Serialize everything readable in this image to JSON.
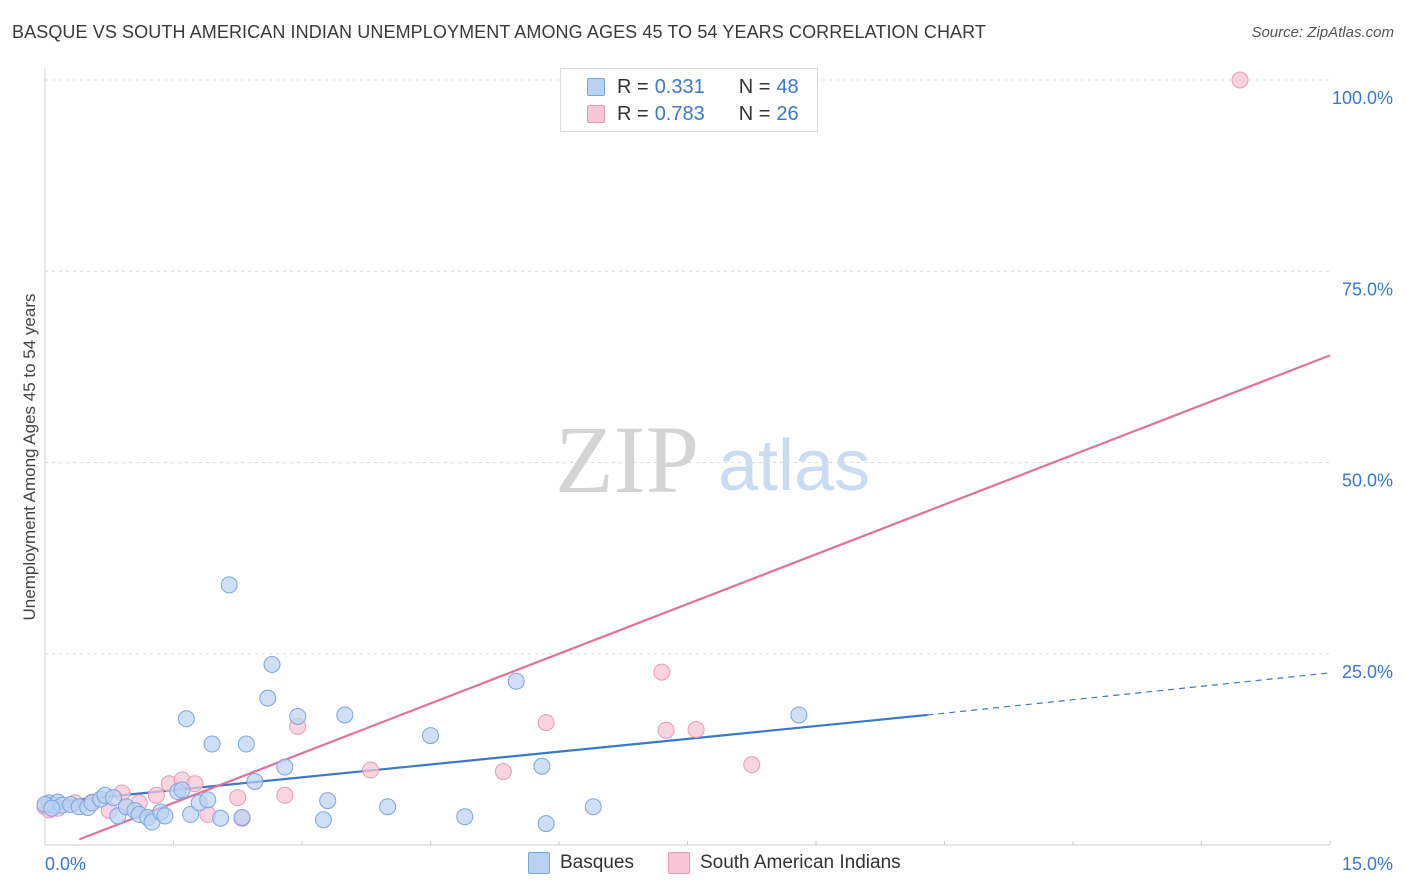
{
  "title": "BASQUE VS SOUTH AMERICAN INDIAN UNEMPLOYMENT AMONG AGES 45 TO 54 YEARS CORRELATION CHART",
  "source": "Source: ZipAtlas.com",
  "watermark": {
    "zip": "ZIP",
    "atlas": "atlas"
  },
  "legend": {
    "basques": {
      "r_label": "R = ",
      "r_value": "0.331",
      "n_label": "N = ",
      "n_value": "48"
    },
    "south_american": {
      "r_label": "R = ",
      "r_value": "0.783",
      "n_label": "N = ",
      "n_value": "26"
    }
  },
  "bottom_legend": {
    "basques": "Basques",
    "south_american": "South American Indians"
  },
  "colors": {
    "blue": "#3a78c9",
    "blue_fill": "#b9d2f2",
    "blue_stroke": "#7aa6de",
    "pink": "#e07299",
    "pink_fill": "#f8c6d6",
    "pink_stroke": "#eb9ab5",
    "grid": "#dcdcdc",
    "tick_label": "#3a78c9"
  },
  "chart_data": {
    "type": "scatter",
    "title": "BASQUE VS SOUTH AMERICAN INDIAN UNEMPLOYMENT AMONG AGES 45 TO 54 YEARS CORRELATION CHART",
    "xlabel": "",
    "ylabel": "Unemployment Among Ages 45 to 54 years",
    "xlim": [
      0,
      15
    ],
    "ylim": [
      0,
      100
    ],
    "x_tick_labels": [
      "0.0%",
      "15.0%"
    ],
    "y_ticks": [
      25,
      50,
      75,
      100
    ],
    "y_tick_labels": [
      "25.0%",
      "50.0%",
      "75.0%",
      "100.0%"
    ],
    "series": [
      {
        "name": "Basques",
        "points": [
          [
            0.05,
            5.5
          ],
          [
            0.1,
            5.2
          ],
          [
            0.15,
            5.6
          ],
          [
            0.2,
            5.2
          ],
          [
            0.3,
            5.3
          ],
          [
            0.4,
            5.0
          ],
          [
            0.5,
            4.9
          ],
          [
            0.55,
            5.5
          ],
          [
            0.65,
            6.0
          ],
          [
            0.7,
            6.5
          ],
          [
            0.8,
            6.2
          ],
          [
            0.85,
            3.8
          ],
          [
            0.95,
            5.0
          ],
          [
            1.05,
            4.5
          ],
          [
            1.1,
            4.0
          ],
          [
            1.2,
            3.6
          ],
          [
            1.25,
            3.0
          ],
          [
            1.35,
            4.3
          ],
          [
            1.4,
            3.8
          ],
          [
            1.55,
            7.0
          ],
          [
            1.6,
            7.2
          ],
          [
            1.65,
            16.5
          ],
          [
            1.7,
            4.0
          ],
          [
            1.8,
            5.5
          ],
          [
            1.9,
            5.9
          ],
          [
            1.95,
            13.2
          ],
          [
            2.05,
            3.5
          ],
          [
            2.15,
            34.0
          ],
          [
            2.3,
            3.6
          ],
          [
            2.35,
            13.2
          ],
          [
            2.45,
            8.3
          ],
          [
            2.6,
            19.2
          ],
          [
            2.65,
            23.6
          ],
          [
            2.8,
            10.2
          ],
          [
            2.95,
            16.8
          ],
          [
            3.25,
            3.3
          ],
          [
            3.3,
            5.8
          ],
          [
            3.5,
            17.0
          ],
          [
            4.0,
            5.0
          ],
          [
            4.5,
            14.3
          ],
          [
            4.9,
            3.7
          ],
          [
            5.5,
            21.4
          ],
          [
            5.8,
            10.3
          ],
          [
            5.85,
            2.8
          ],
          [
            6.4,
            5.0
          ],
          [
            8.8,
            17.0
          ],
          [
            0.0,
            5.3
          ],
          [
            0.08,
            4.8
          ]
        ],
        "trend": {
          "x0": 0,
          "y0": 5.5,
          "x1": 10.3,
          "y1": 17.0,
          "dash_to_x": 15,
          "dash_to_y": 22.5
        }
      },
      {
        "name": "South American Indians",
        "points": [
          [
            0.0,
            5.0
          ],
          [
            0.15,
            4.8
          ],
          [
            0.35,
            5.5
          ],
          [
            0.55,
            5.6
          ],
          [
            0.75,
            4.5
          ],
          [
            0.9,
            6.8
          ],
          [
            0.95,
            5.0
          ],
          [
            1.1,
            5.5
          ],
          [
            1.3,
            6.5
          ],
          [
            1.45,
            8.0
          ],
          [
            1.6,
            8.5
          ],
          [
            1.75,
            8.0
          ],
          [
            1.9,
            4.0
          ],
          [
            2.25,
            6.2
          ],
          [
            2.3,
            3.5
          ],
          [
            2.8,
            6.5
          ],
          [
            2.95,
            15.5
          ],
          [
            3.8,
            9.8
          ],
          [
            5.35,
            9.6
          ],
          [
            5.85,
            16.0
          ],
          [
            7.2,
            22.6
          ],
          [
            7.25,
            15.0
          ],
          [
            7.6,
            15.1
          ],
          [
            8.25,
            10.5
          ],
          [
            13.95,
            100.0
          ],
          [
            0.05,
            4.6
          ]
        ],
        "trend": {
          "x0": 0,
          "y0": -1.0,
          "x1": 15,
          "y1": 64.0
        }
      }
    ]
  }
}
